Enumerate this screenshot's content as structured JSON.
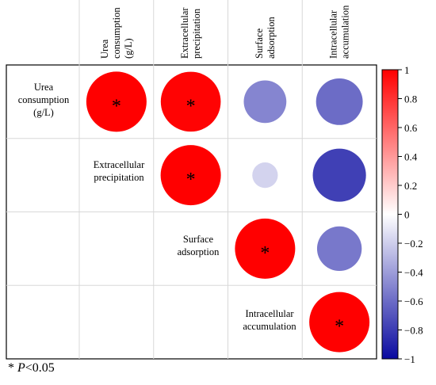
{
  "chart_data": {
    "type": "correlation-matrix",
    "variables": [
      [
        "Urea",
        "consumption",
        "(g/L)"
      ],
      [
        "Extracellular",
        "precipitation"
      ],
      [
        "Surface",
        "adsorption"
      ],
      [
        "Intracellular",
        "accumulation"
      ]
    ],
    "column_labels": [
      [
        "Urea",
        "consumption",
        "(g/L)"
      ],
      [
        "Extracellular",
        "precipitation"
      ],
      [
        "Surface",
        "adsorption"
      ],
      [
        "Intracellular",
        "accumulation"
      ]
    ],
    "cells": [
      {
        "row": 0,
        "col": 0,
        "value": 1.0,
        "significant": true
      },
      {
        "row": 0,
        "col": 1,
        "value": 0.99,
        "significant": true
      },
      {
        "row": 0,
        "col": 2,
        "value": -0.5,
        "significant": false
      },
      {
        "row": 0,
        "col": 3,
        "value": -0.6,
        "significant": false
      },
      {
        "row": 1,
        "col": 1,
        "value": 1.0,
        "significant": true
      },
      {
        "row": 1,
        "col": 2,
        "value": -0.18,
        "significant": false
      },
      {
        "row": 1,
        "col": 3,
        "value": -0.78,
        "significant": false
      },
      {
        "row": 2,
        "col": 2,
        "value": 1.0,
        "significant": true
      },
      {
        "row": 2,
        "col": 3,
        "value": -0.55,
        "significant": false
      },
      {
        "row": 3,
        "col": 3,
        "value": 1.0,
        "significant": true
      }
    ],
    "significance_marker": "*",
    "colorbar": {
      "range": [
        -1,
        1
      ],
      "ticks": [
        "1",
        "0.8",
        "0.6",
        "0.4",
        "0.2",
        "0",
        "−0.2",
        "−0.4",
        "−0.6",
        "−0.8",
        "−1"
      ],
      "colors": {
        "neg": "#0a0aa0",
        "mid": "#ffffff",
        "pos": "#ff0000"
      }
    },
    "grid": true
  },
  "footnote": {
    "star": "*",
    "p_symbol": "P",
    "threshold": "<0.05"
  }
}
